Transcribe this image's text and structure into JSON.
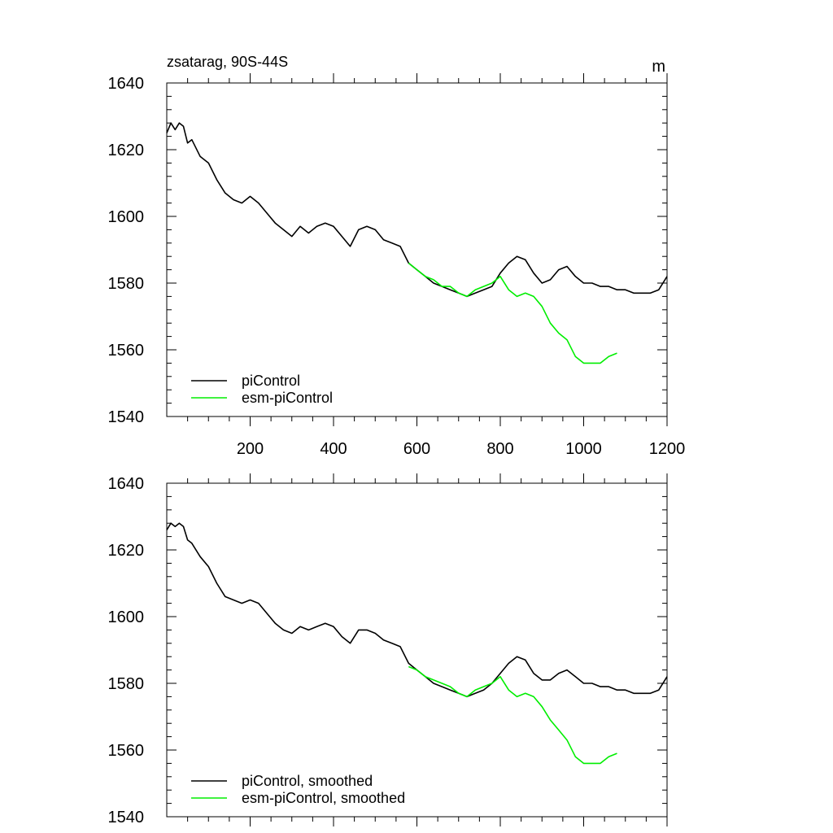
{
  "chart_data": [
    {
      "type": "line",
      "title": "zsatarag, 90S-44S",
      "units": "m",
      "xlim": [
        0,
        1200
      ],
      "ylim": [
        1540,
        1640
      ],
      "xticks": [
        200,
        400,
        600,
        800,
        1000,
        1200
      ],
      "xtick_labels": [
        "200",
        "400",
        "600",
        "800",
        "1000",
        "1200"
      ],
      "yticks": [
        1540,
        1560,
        1580,
        1600,
        1620,
        1640
      ],
      "ytick_labels": [
        "1540",
        "1560",
        "1580",
        "1600",
        "1620",
        "1640"
      ],
      "legend_position": "bottom-left",
      "series": [
        {
          "name": "piControl",
          "color": "#000000",
          "x": [
            0,
            10,
            20,
            30,
            40,
            50,
            60,
            80,
            100,
            120,
            140,
            160,
            180,
            200,
            220,
            240,
            260,
            280,
            300,
            320,
            340,
            360,
            380,
            400,
            420,
            440,
            460,
            480,
            500,
            520,
            540,
            560,
            580,
            600,
            620,
            640,
            660,
            680,
            700,
            720,
            740,
            760,
            780,
            800,
            820,
            840,
            860,
            880,
            900,
            920,
            940,
            960,
            980,
            1000,
            1020,
            1040,
            1060,
            1080,
            1100,
            1120,
            1140,
            1160,
            1180,
            1200
          ],
          "y": [
            1625,
            1628,
            1626,
            1628,
            1627,
            1622,
            1623,
            1618,
            1616,
            1611,
            1607,
            1605,
            1604,
            1606,
            1604,
            1601,
            1598,
            1596,
            1594,
            1597,
            1595,
            1597,
            1598,
            1597,
            1594,
            1591,
            1596,
            1597,
            1596,
            1593,
            1592,
            1591,
            1586,
            1584,
            1582,
            1580,
            1579,
            1578,
            1577,
            1576,
            1577,
            1578,
            1579,
            1583,
            1586,
            1588,
            1587,
            1583,
            1580,
            1581,
            1584,
            1585,
            1582,
            1580,
            1580,
            1579,
            1579,
            1578,
            1578,
            1577,
            1577,
            1577,
            1578,
            1582
          ]
        },
        {
          "name": "esm-piControl",
          "color": "#00ee00",
          "x": [
            580,
            600,
            620,
            640,
            660,
            680,
            700,
            720,
            740,
            760,
            780,
            800,
            820,
            840,
            860,
            880,
            900,
            920,
            940,
            960,
            980,
            1000,
            1020,
            1040,
            1060,
            1080
          ],
          "y": [
            1586,
            1584,
            1582,
            1581,
            1579,
            1579,
            1577,
            1576,
            1578,
            1579,
            1580,
            1582,
            1578,
            1576,
            1577,
            1576,
            1573,
            1568,
            1565,
            1563,
            1558,
            1556,
            1556,
            1556,
            1558,
            1559
          ]
        }
      ]
    },
    {
      "type": "line",
      "title": "",
      "units": "",
      "xlim": [
        0,
        1200
      ],
      "ylim": [
        1540,
        1640
      ],
      "xticks": [
        200,
        400,
        600,
        800,
        1000,
        1200
      ],
      "xtick_labels": [],
      "yticks": [
        1540,
        1560,
        1580,
        1600,
        1620,
        1640
      ],
      "ytick_labels": [
        "1540",
        "1560",
        "1580",
        "1600",
        "1620",
        "1640"
      ],
      "legend_position": "bottom-left",
      "series": [
        {
          "name": "piControl, smoothed",
          "color": "#000000",
          "x": [
            0,
            10,
            20,
            30,
            40,
            50,
            60,
            80,
            100,
            120,
            140,
            160,
            180,
            200,
            220,
            240,
            260,
            280,
            300,
            320,
            340,
            360,
            380,
            400,
            420,
            440,
            460,
            480,
            500,
            520,
            540,
            560,
            580,
            600,
            620,
            640,
            660,
            680,
            700,
            720,
            740,
            760,
            780,
            800,
            820,
            840,
            860,
            880,
            900,
            920,
            940,
            960,
            980,
            1000,
            1020,
            1040,
            1060,
            1080,
            1100,
            1120,
            1140,
            1160,
            1180,
            1200
          ],
          "y": [
            1626,
            1628,
            1627,
            1628,
            1627,
            1623,
            1622,
            1618,
            1615,
            1610,
            1606,
            1605,
            1604,
            1605,
            1604,
            1601,
            1598,
            1596,
            1595,
            1597,
            1596,
            1597,
            1598,
            1597,
            1594,
            1592,
            1596,
            1596,
            1595,
            1593,
            1592,
            1591,
            1586,
            1584,
            1582,
            1580,
            1579,
            1578,
            1577,
            1576,
            1577,
            1578,
            1580,
            1583,
            1586,
            1588,
            1587,
            1583,
            1581,
            1581,
            1583,
            1584,
            1582,
            1580,
            1580,
            1579,
            1579,
            1578,
            1578,
            1577,
            1577,
            1577,
            1578,
            1582
          ]
        },
        {
          "name": "esm-piControl, smoothed",
          "color": "#00ee00",
          "x": [
            580,
            600,
            620,
            640,
            660,
            680,
            700,
            720,
            740,
            760,
            780,
            800,
            820,
            840,
            860,
            880,
            900,
            920,
            940,
            960,
            980,
            1000,
            1020,
            1040,
            1060,
            1080
          ],
          "y": [
            1585,
            1584,
            1582,
            1581,
            1580,
            1579,
            1577,
            1576,
            1578,
            1579,
            1580,
            1582,
            1578,
            1576,
            1577,
            1576,
            1573,
            1569,
            1566,
            1563,
            1558,
            1556,
            1556,
            1556,
            1558,
            1559
          ]
        }
      ]
    }
  ]
}
